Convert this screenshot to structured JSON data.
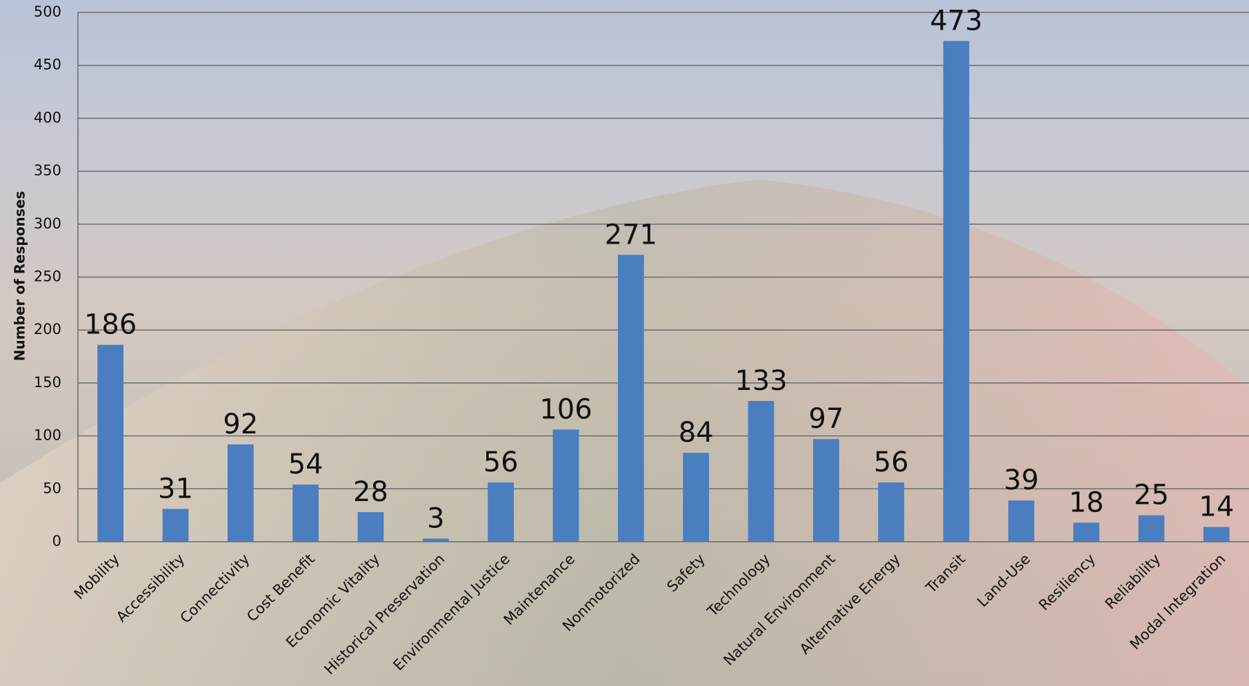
{
  "chart_data": {
    "type": "bar",
    "y_label": "Number of Responses",
    "categories": [
      "Mobility",
      "Accessibility",
      "Connectivity",
      "Cost Benefit",
      "Economic Vitality",
      "Historical Preservation",
      "Environmental Justice",
      "Maintenance",
      "Nonmotorized",
      "Safety",
      "Technology",
      "Natural Environment",
      "Alternative Energy",
      "Transit",
      "Land-Use",
      "Resiliency",
      "Reliability",
      "Modal Integration"
    ],
    "values": [
      186,
      31,
      92,
      54,
      28,
      3,
      56,
      106,
      271,
      84,
      133,
      97,
      56,
      473,
      39,
      18,
      25,
      14
    ],
    "color": "#4a7ebf",
    "ylim": [
      0,
      500
    ],
    "yticks": [
      0,
      50,
      100,
      150,
      200,
      250,
      300,
      350,
      400,
      450,
      500
    ],
    "grid": true
  }
}
